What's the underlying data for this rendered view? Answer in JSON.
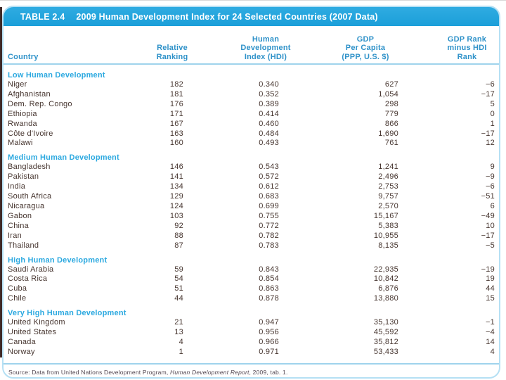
{
  "table": {
    "title_label": "TABLE 2.4",
    "title": "2009 Human Development Index for 24 Selected Countries (2007 Data)",
    "columns": [
      "Country",
      "Relative\nRanking",
      "Human\nDevelopment\nIndex (HDI)",
      "GDP\nPer Capita\n(PPP, U.S. $)",
      "GDP Rank\nminus HDI\nRank"
    ],
    "sections": [
      {
        "header": "Low Human Development",
        "rows": [
          [
            "Niger",
            "182",
            "0.340",
            "627",
            "−6"
          ],
          [
            "Afghanistan",
            "181",
            "0.352",
            "1,054",
            "−17"
          ],
          [
            "Dem. Rep. Congo",
            "176",
            "0.389",
            "298",
            "5"
          ],
          [
            "Ethiopia",
            "171",
            "0.414",
            "779",
            "0"
          ],
          [
            "Rwanda",
            "167",
            "0.460",
            "866",
            "1"
          ],
          [
            "Côte d'Ivoire",
            "163",
            "0.484",
            "1,690",
            "−17"
          ],
          [
            "Malawi",
            "160",
            "0.493",
            "761",
            "12"
          ]
        ]
      },
      {
        "header": "Medium Human Development",
        "rows": [
          [
            "Bangladesh",
            "146",
            "0.543",
            "1,241",
            "9"
          ],
          [
            "Pakistan",
            "141",
            "0.572",
            "2,496",
            "−9"
          ],
          [
            "India",
            "134",
            "0.612",
            "2,753",
            "−6"
          ],
          [
            "South Africa",
            "129",
            "0.683",
            "9,757",
            "−51"
          ],
          [
            "Nicaragua",
            "124",
            "0.699",
            "2,570",
            "6"
          ],
          [
            "Gabon",
            "103",
            "0.755",
            "15,167",
            "−49"
          ],
          [
            "China",
            "92",
            "0.772",
            "5,383",
            "10"
          ],
          [
            "Iran",
            "88",
            "0.782",
            "10,955",
            "−17"
          ],
          [
            "Thailand",
            "87",
            "0.783",
            "8,135",
            "−5"
          ]
        ]
      },
      {
        "header": "High Human Development",
        "rows": [
          [
            "Saudi Arabia",
            "59",
            "0.843",
            "22,935",
            "−19"
          ],
          [
            "Costa Rica",
            "54",
            "0.854",
            "10,842",
            "19"
          ],
          [
            "Cuba",
            "51",
            "0.863",
            "6,876",
            "44"
          ],
          [
            "Chile",
            "44",
            "0.878",
            "13,880",
            "15"
          ]
        ]
      },
      {
        "header": "Very High Human Development",
        "rows": [
          [
            "United Kingdom",
            "21",
            "0.947",
            "35,130",
            "−1"
          ],
          [
            "United States",
            "13",
            "0.956",
            "45,592",
            "−4"
          ],
          [
            "Canada",
            "4",
            "0.966",
            "35,812",
            "14"
          ],
          [
            "Norway",
            "1",
            "0.971",
            "53,433",
            "4"
          ]
        ]
      }
    ],
    "source_prefix": "Source: Data from United Nations Development Program, ",
    "source_italic": "Human Development Report",
    "source_suffix": ", 2009, tab. 1."
  },
  "colors": {
    "title_bar": "#1fa5df",
    "column_header_text": "#2f92c9",
    "section_header_text": "#2ca9e0",
    "body_text": "#46352f",
    "rule_line": "#9fd3ec",
    "panel_border": "#b5e0f4"
  }
}
